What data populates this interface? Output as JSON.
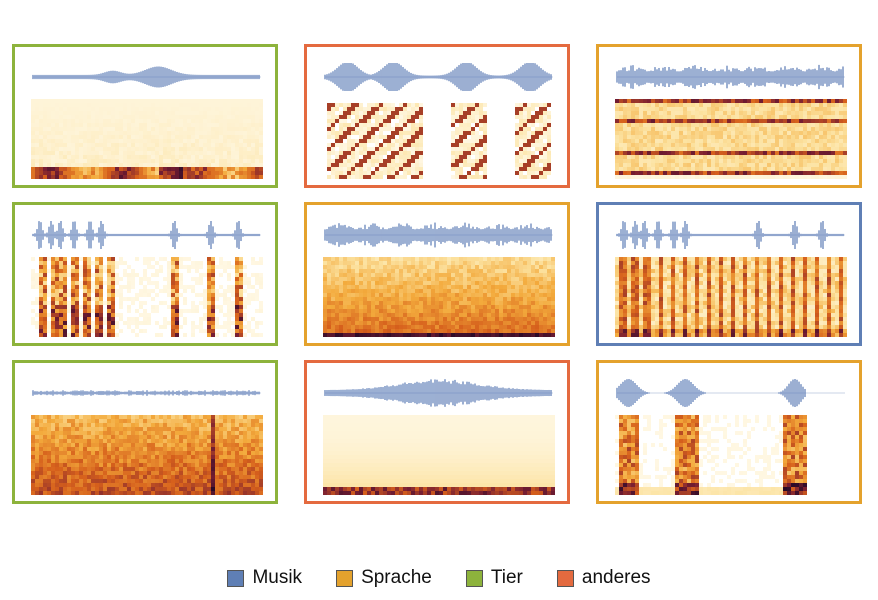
{
  "colors": {
    "waveform": "#5a7ab5",
    "Musik": "#5f7fb5",
    "Sprache": "#e4a22d",
    "Tier": "#8db33c",
    "anderes": "#e46a3f"
  },
  "legend": [
    {
      "key": "Musik",
      "label": "Musik"
    },
    {
      "key": "Sprache",
      "label": "Sprache"
    },
    {
      "key": "Tier",
      "label": "Tier"
    },
    {
      "key": "anderes",
      "label": "anderes"
    }
  ],
  "cards": [
    {
      "category": "Tier",
      "pattern": "low-band",
      "wave": "soft-burst"
    },
    {
      "category": "anderes",
      "pattern": "chirps",
      "wave": "bursts"
    },
    {
      "category": "Sprache",
      "pattern": "harmonic-lines",
      "wave": "dense"
    },
    {
      "category": "Tier",
      "pattern": "pulses",
      "wave": "sparse-spikes"
    },
    {
      "category": "Sprache",
      "pattern": "broadband",
      "wave": "dense"
    },
    {
      "category": "Musik",
      "pattern": "rhythmic",
      "wave": "sparse-spikes"
    },
    {
      "category": "Tier",
      "pattern": "noise",
      "wave": "small"
    },
    {
      "category": "anderes",
      "pattern": "rumble",
      "wave": "swell"
    },
    {
      "category": "Sprache",
      "pattern": "three-bursts",
      "wave": "three-bursts"
    }
  ]
}
